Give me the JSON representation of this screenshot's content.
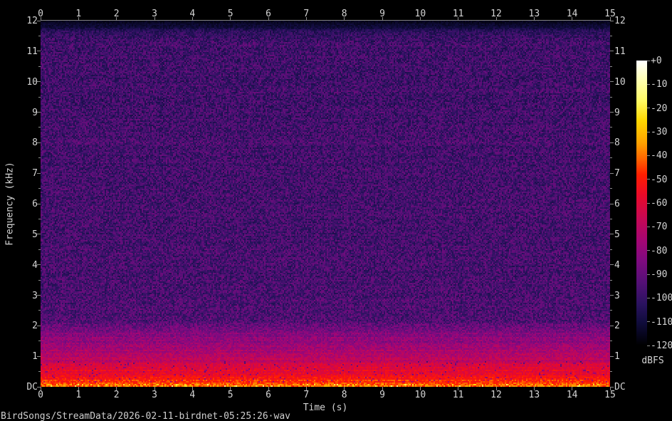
{
  "footer": {
    "file_path": "BirdSongs/StreamData/2026-02-11-birdnet-05:25:26·wav"
  },
  "chart_data": {
    "type": "heatmap",
    "title": "BirdSongs/StreamData/2026-02-11-birdnet-05:25:26·wav",
    "xlabel": "Time (s)",
    "ylabel": "Frequency (kHz)",
    "xlim": [
      0,
      15
    ],
    "ylim_khz": [
      0,
      12
    ],
    "grid": false,
    "x_ticks": [
      "0",
      "1",
      "2",
      "3",
      "4",
      "5",
      "6",
      "7",
      "8",
      "9",
      "10",
      "11",
      "12",
      "13",
      "14",
      "15"
    ],
    "y_ticks_top_to_bottom": [
      "12",
      "11",
      "10",
      "9",
      "8",
      "7",
      "6",
      "5",
      "4",
      "3",
      "2",
      "1",
      "DC"
    ],
    "y_minor_tick_step_khz": 0.5,
    "axes_layout": "time ticks on top and bottom, frequency ticks on left and right",
    "colorbar": {
      "label": "dBFS",
      "range_db": [
        0,
        -120
      ],
      "ticks": [
        "+0",
        "-10",
        "-20",
        "-30",
        "-40",
        "-50",
        "-60",
        "-70",
        "-80",
        "-90",
        "-100",
        "-110",
        "-120"
      ],
      "position": "right",
      "gradient": [
        {
          "t": 0.0,
          "color": "#ffffff"
        },
        {
          "t": 0.065,
          "color": "#ffffb4"
        },
        {
          "t": 0.14,
          "color": "#fffa64"
        },
        {
          "t": 0.21,
          "color": "#ffd700"
        },
        {
          "t": 0.29,
          "color": "#ffa000"
        },
        {
          "t": 0.345,
          "color": "#ff6400"
        },
        {
          "t": 0.4,
          "color": "#ff1e00"
        },
        {
          "t": 0.47,
          "color": "#eb0a28"
        },
        {
          "t": 0.55,
          "color": "#c80852"
        },
        {
          "t": 0.63,
          "color": "#a50673"
        },
        {
          "t": 0.7,
          "color": "#800a80"
        },
        {
          "t": 0.78,
          "color": "#541076"
        },
        {
          "t": 0.855,
          "color": "#2a125f"
        },
        {
          "t": 0.92,
          "color": "#100c3c"
        },
        {
          "t": 0.97,
          "color": "#050418"
        },
        {
          "t": 1.0,
          "color": "#000000"
        }
      ]
    },
    "intensity_profile_db_by_height_fraction": [
      {
        "f": 0.0,
        "db": -115,
        "noise": 2
      },
      {
        "f": 0.016,
        "db": -112,
        "noise": 3
      },
      {
        "f": 0.028,
        "db": -103,
        "noise": 6
      },
      {
        "f": 0.055,
        "db": -98,
        "noise": 9
      },
      {
        "f": 0.33,
        "db": -97.5,
        "noise": 9
      },
      {
        "f": 0.334,
        "db": -94,
        "noise": 9
      },
      {
        "f": 0.339,
        "db": -97.5,
        "noise": 9
      },
      {
        "f": 0.7,
        "db": -96.5,
        "noise": 9
      },
      {
        "f": 0.82,
        "db": -95,
        "noise": 9
      },
      {
        "f": 0.84,
        "db": -89,
        "noise": 8
      },
      {
        "f": 0.852,
        "db": -84,
        "noise": 7
      },
      {
        "f": 0.88,
        "db": -80,
        "noise": 7
      },
      {
        "f": 0.91,
        "db": -73,
        "noise": 7
      },
      {
        "f": 0.935,
        "db": -66,
        "noise": 6
      },
      {
        "f": 0.958,
        "db": -58,
        "noise": 6
      },
      {
        "f": 0.978,
        "db": -51,
        "noise": 6
      },
      {
        "f": 0.99,
        "db": -46,
        "noise": 7
      },
      {
        "f": 0.996,
        "db": -41,
        "noise": 9
      },
      {
        "f": 1.0,
        "db": -37,
        "noise": 10
      }
    ]
  }
}
